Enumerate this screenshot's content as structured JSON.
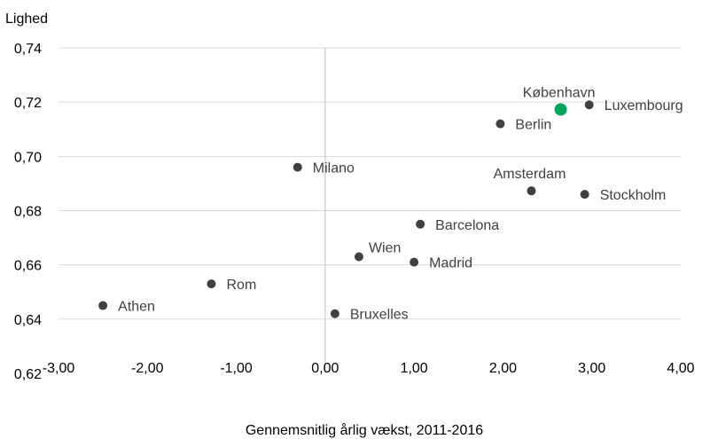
{
  "chart_data": {
    "type": "scatter",
    "ylabel": "Lighed",
    "xlabel": "Gennemsnitlig  årlig vækst, 2011-2016",
    "xlim": [
      -3.0,
      4.0
    ],
    "ylim": [
      0.62,
      0.74
    ],
    "x_ticks": [
      -3.0,
      -2.0,
      -1.0,
      0.0,
      1.0,
      2.0,
      3.0,
      4.0
    ],
    "x_tick_labels": [
      "-3,00",
      "-2,00",
      "-1,00",
      "0,00",
      "1,00",
      "2,00",
      "3,00",
      "4,00"
    ],
    "y_ticks": [
      0.62,
      0.64,
      0.66,
      0.68,
      0.7,
      0.72,
      0.74
    ],
    "y_tick_labels": [
      "0,62",
      "0,64",
      "0,66",
      "0,68",
      "0,70",
      "0,72",
      "0,74"
    ],
    "grid": "horizontal",
    "colors": {
      "point": "#404040",
      "highlight": "#00a65a",
      "grid": "#d9d9d9",
      "zero_line": "#bfbfbf"
    },
    "points": [
      {
        "name": "København",
        "x": 2.65,
        "y": 0.7173,
        "highlight": true,
        "label_pos": "above"
      },
      {
        "name": "Luxembourg",
        "x": 2.97,
        "y": 0.719,
        "highlight": false,
        "label_pos": "right"
      },
      {
        "name": "Berlin",
        "x": 1.97,
        "y": 0.712,
        "highlight": false,
        "label_pos": "right"
      },
      {
        "name": "Milano",
        "x": -0.31,
        "y": 0.696,
        "highlight": false,
        "label_pos": "right"
      },
      {
        "name": "Amsterdam",
        "x": 2.32,
        "y": 0.6873,
        "highlight": false,
        "label_pos": "above"
      },
      {
        "name": "Stockholm",
        "x": 2.92,
        "y": 0.686,
        "highlight": false,
        "label_pos": "right"
      },
      {
        "name": "Barcelona",
        "x": 1.07,
        "y": 0.675,
        "highlight": false,
        "label_pos": "right"
      },
      {
        "name": "Wien",
        "x": 0.38,
        "y": 0.663,
        "highlight": false,
        "label_pos": "above-right"
      },
      {
        "name": "Madrid",
        "x": 1.0,
        "y": 0.661,
        "highlight": false,
        "label_pos": "right"
      },
      {
        "name": "Rom",
        "x": -1.28,
        "y": 0.653,
        "highlight": false,
        "label_pos": "right"
      },
      {
        "name": "Athen",
        "x": -2.5,
        "y": 0.645,
        "highlight": false,
        "label_pos": "right"
      },
      {
        "name": "Bruxelles",
        "x": 0.11,
        "y": 0.642,
        "highlight": false,
        "label_pos": "right"
      }
    ]
  }
}
